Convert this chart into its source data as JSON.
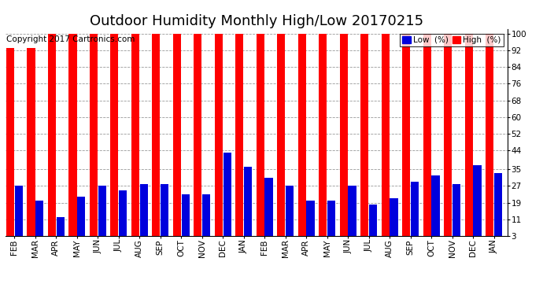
{
  "title": "Outdoor Humidity Monthly High/Low 20170215",
  "copyright": "Copyright 2017 Cartronics.com",
  "months": [
    "FEB",
    "MAR",
    "APR",
    "MAY",
    "JUN",
    "JUL",
    "AUG",
    "SEP",
    "OCT",
    "NOV",
    "DEC",
    "JAN",
    "FEB",
    "MAR",
    "APR",
    "MAY",
    "JUN",
    "JUL",
    "AUG",
    "SEP",
    "OCT",
    "NOV",
    "DEC",
    "JAN"
  ],
  "high_values": [
    93,
    93,
    100,
    100,
    100,
    100,
    100,
    100,
    100,
    100,
    100,
    100,
    100,
    100,
    100,
    100,
    100,
    100,
    100,
    100,
    100,
    100,
    100,
    100
  ],
  "low_values": [
    27,
    20,
    12,
    22,
    27,
    25,
    28,
    28,
    23,
    23,
    43,
    36,
    31,
    27,
    20,
    20,
    27,
    18,
    21,
    29,
    32,
    28,
    37,
    33
  ],
  "high_color": "#ff0000",
  "low_color": "#0000dd",
  "background_color": "#ffffff",
  "plot_bg_color": "#ffffff",
  "grid_color": "#999999",
  "yticks": [
    3,
    11,
    19,
    27,
    35,
    44,
    52,
    60,
    68,
    76,
    84,
    92,
    100
  ],
  "ylim": [
    3,
    102
  ],
  "title_fontsize": 13,
  "copyright_fontsize": 7.5,
  "tick_fontsize": 7.5,
  "legend_low_label": "Low  (%)",
  "legend_high_label": "High  (%)",
  "legend_fontsize": 7.5
}
